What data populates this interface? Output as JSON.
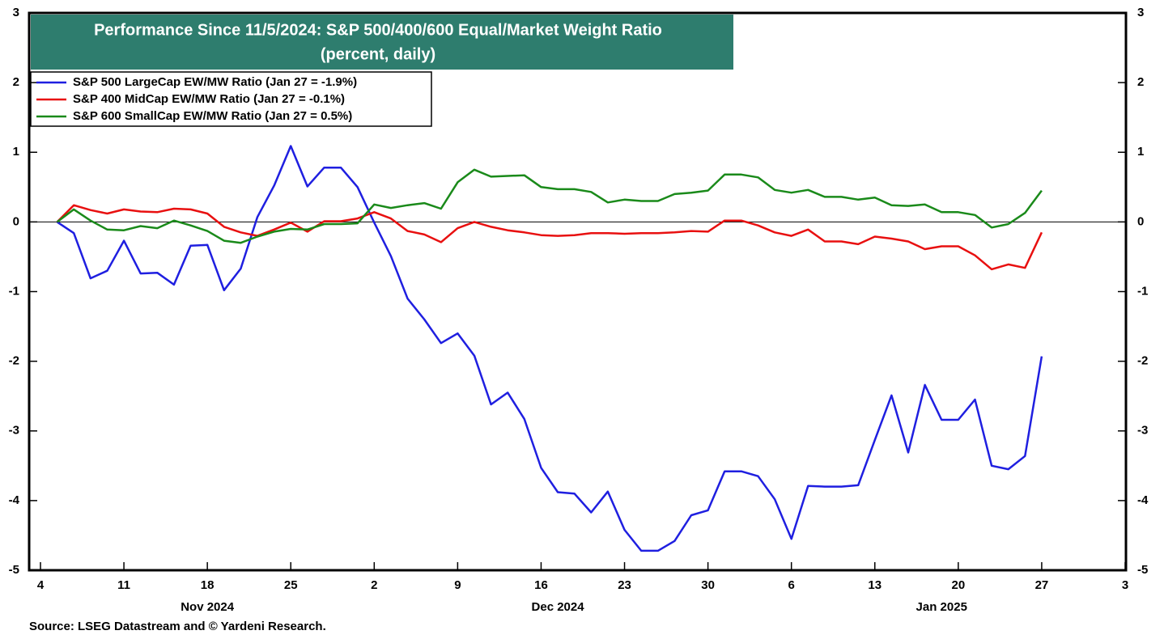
{
  "chart_data": {
    "type": "line",
    "title": "Performance Since 11/5/2024: S&P 500/400/600 Equal/Market Weight Ratio",
    "subtitle": "(percent, daily)",
    "source": "Source: LSEG Datastream and © Yardeni Research.",
    "x": [
      "2024-11-05",
      "2024-11-06",
      "2024-11-07",
      "2024-11-08",
      "2024-11-11",
      "2024-11-12",
      "2024-11-13",
      "2024-11-14",
      "2024-11-15",
      "2024-11-18",
      "2024-11-19",
      "2024-11-20",
      "2024-11-21",
      "2024-11-22",
      "2024-11-25",
      "2024-11-26",
      "2024-11-27",
      "2024-11-28",
      "2024-11-29",
      "2024-12-02",
      "2024-12-03",
      "2024-12-04",
      "2024-12-05",
      "2024-12-06",
      "2024-12-09",
      "2024-12-10",
      "2024-12-11",
      "2024-12-12",
      "2024-12-13",
      "2024-12-16",
      "2024-12-17",
      "2024-12-18",
      "2024-12-19",
      "2024-12-20",
      "2024-12-23",
      "2024-12-24",
      "2024-12-25",
      "2024-12-26",
      "2024-12-27",
      "2024-12-30",
      "2024-12-31",
      "2025-01-01",
      "2025-01-02",
      "2025-01-03",
      "2025-01-06",
      "2025-01-07",
      "2025-01-08",
      "2025-01-09",
      "2025-01-10",
      "2025-01-13",
      "2025-01-14",
      "2025-01-15",
      "2025-01-16",
      "2025-01-17",
      "2025-01-20",
      "2025-01-21",
      "2025-01-22",
      "2025-01-23",
      "2025-01-24",
      "2025-01-27"
    ],
    "series": [
      {
        "name": "S&P 500 LargeCap EW/MW Ratio (Jan 27 = -1.9%)",
        "color": "#1f1fe0",
        "values": [
          0,
          -0.16,
          -0.81,
          -0.7,
          -0.27,
          -0.74,
          -0.73,
          -0.9,
          -0.34,
          -0.33,
          -0.98,
          -0.67,
          0.07,
          0.52,
          1.09,
          0.51,
          0.78,
          0.78,
          0.5,
          -0.01,
          -0.49,
          -1.1,
          -1.4,
          -1.74,
          -1.6,
          -1.92,
          -2.62,
          -2.45,
          -2.83,
          -3.53,
          -3.88,
          -3.9,
          -4.17,
          -3.87,
          -4.42,
          -4.72,
          -4.72,
          -4.58,
          -4.21,
          -4.14,
          -3.58,
          -3.58,
          -3.65,
          -3.98,
          -4.55,
          -3.79,
          -3.8,
          -3.8,
          -3.78,
          -3.13,
          -2.49,
          -3.31,
          -2.34,
          -2.84,
          -2.84,
          -2.55,
          -3.5,
          -3.55,
          -3.36,
          -1.93
        ]
      },
      {
        "name": "S&P 400 MidCap EW/MW Ratio (Jan 27 = -0.1%)",
        "color": "#e81010",
        "values": [
          0,
          0.24,
          0.17,
          0.12,
          0.18,
          0.15,
          0.14,
          0.19,
          0.18,
          0.12,
          -0.07,
          -0.15,
          -0.2,
          -0.11,
          -0.01,
          -0.14,
          0.01,
          0.01,
          0.05,
          0.14,
          0.05,
          -0.13,
          -0.18,
          -0.29,
          -0.09,
          0.0,
          -0.07,
          -0.12,
          -0.15,
          -0.19,
          -0.2,
          -0.19,
          -0.16,
          -0.16,
          -0.17,
          -0.16,
          -0.16,
          -0.15,
          -0.13,
          -0.14,
          0.02,
          0.02,
          -0.05,
          -0.15,
          -0.2,
          -0.11,
          -0.28,
          -0.28,
          -0.32,
          -0.21,
          -0.24,
          -0.28,
          -0.39,
          -0.35,
          -0.35,
          -0.48,
          -0.68,
          -0.61,
          -0.66,
          -0.15
        ]
      },
      {
        "name": "S&P 600 SmallCap EW/MW Ratio (Jan 27 = 0.5%)",
        "color": "#1a8a1a",
        "values": [
          0,
          0.18,
          0.02,
          -0.11,
          -0.12,
          -0.06,
          -0.09,
          0.02,
          -0.05,
          -0.13,
          -0.27,
          -0.3,
          -0.21,
          -0.14,
          -0.1,
          -0.11,
          -0.03,
          -0.03,
          -0.02,
          0.25,
          0.2,
          0.24,
          0.27,
          0.19,
          0.57,
          0.75,
          0.65,
          0.66,
          0.67,
          0.5,
          0.47,
          0.47,
          0.43,
          0.28,
          0.32,
          0.3,
          0.3,
          0.4,
          0.42,
          0.45,
          0.68,
          0.68,
          0.64,
          0.46,
          0.42,
          0.46,
          0.36,
          0.36,
          0.32,
          0.35,
          0.24,
          0.23,
          0.25,
          0.14,
          0.14,
          0.1,
          -0.08,
          -0.03,
          0.13,
          0.45
        ]
      }
    ],
    "xlim": [
      "2024-11-04",
      "2025-02-03"
    ],
    "xticks": [
      {
        "value": "2024-11-04",
        "label": "4"
      },
      {
        "value": "2024-11-11",
        "label": "11"
      },
      {
        "value": "2024-11-18",
        "label": "18"
      },
      {
        "value": "2024-11-25",
        "label": "25"
      },
      {
        "value": "2024-12-02",
        "label": "2"
      },
      {
        "value": "2024-12-09",
        "label": "9"
      },
      {
        "value": "2024-12-16",
        "label": "16"
      },
      {
        "value": "2024-12-23",
        "label": "23"
      },
      {
        "value": "2024-12-30",
        "label": "30"
      },
      {
        "value": "2025-01-06",
        "label": "6"
      },
      {
        "value": "2025-01-13",
        "label": "13"
      },
      {
        "value": "2025-01-20",
        "label": "20"
      },
      {
        "value": "2025-01-27",
        "label": "27"
      },
      {
        "value": "2025-02-03",
        "label": "3"
      }
    ],
    "x_month_labels": [
      {
        "value": "2024-11-18",
        "label": "Nov 2024"
      },
      {
        "value": "2024-12-17",
        "label": "Dec 2024"
      },
      {
        "value": "2025-01-17",
        "label": "Jan 2025"
      }
    ],
    "ylim": [
      -5,
      3
    ],
    "yticks": [
      -5,
      -4,
      -3,
      -2,
      -1,
      0,
      1,
      2,
      3
    ],
    "zero_line": true,
    "legend": "top-left"
  }
}
